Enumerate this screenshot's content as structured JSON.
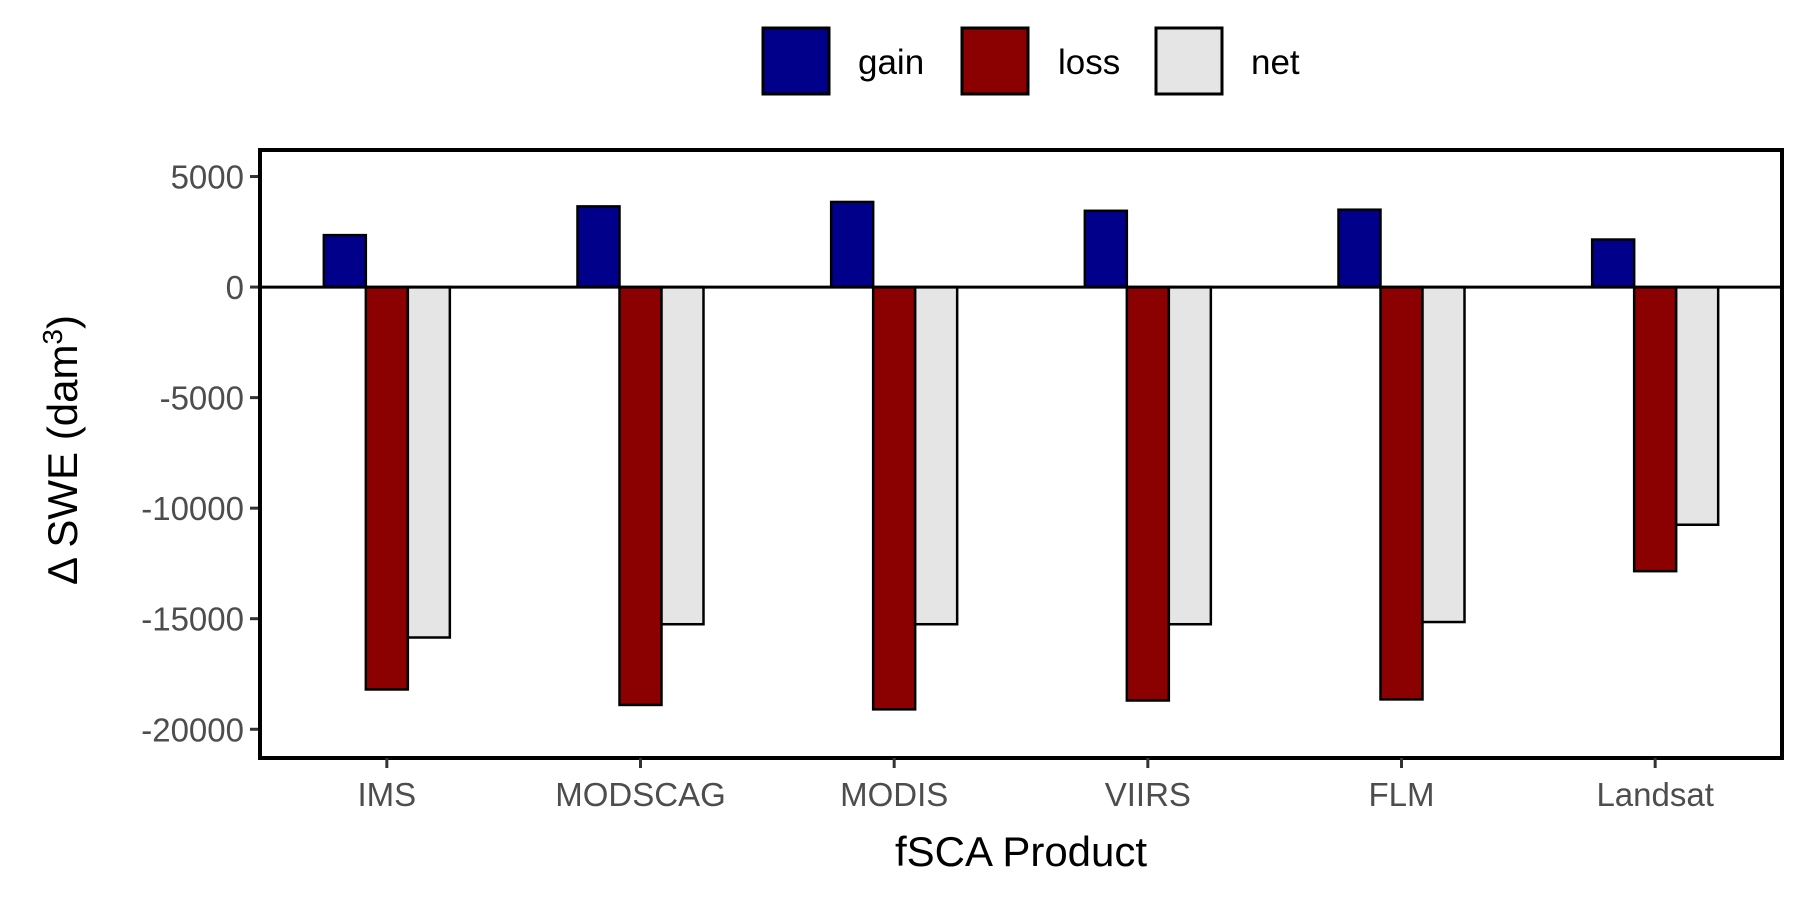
{
  "chart_data": {
    "type": "bar",
    "categories": [
      "IMS",
      "MODSCAG",
      "MODIS",
      "VIIRS",
      "FLM",
      "Landsat"
    ],
    "series": [
      {
        "name": "gain",
        "color": "#00008b",
        "values": [
          2350,
          3650,
          3850,
          3450,
          3500,
          2150
        ]
      },
      {
        "name": "loss",
        "color": "#8b0000",
        "values": [
          -18200,
          -18900,
          -19100,
          -18700,
          -18650,
          -12850
        ]
      },
      {
        "name": "net",
        "color": "#e5e5e5",
        "values": [
          -15850,
          -15250,
          -15250,
          -15250,
          -15150,
          -10750
        ]
      }
    ],
    "xlabel": "fSCA Product",
    "ylabel": "Δ SWE (dam",
    "ylabel_superscript": "3",
    "ylabel_close": ")",
    "ylim": [
      -21300,
      6200
    ],
    "yticks": [
      5000,
      0,
      -5000,
      -10000,
      -15000,
      -20000
    ],
    "ytick_labels": [
      "5000",
      "0",
      "-5000",
      "-10000",
      "-15000",
      "-20000"
    ],
    "legend_position": "top",
    "grid": false,
    "zero_line": true
  }
}
